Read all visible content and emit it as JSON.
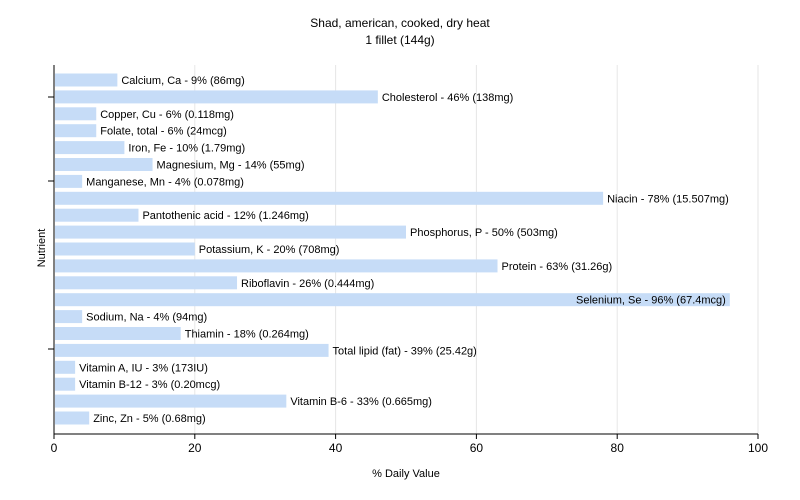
{
  "chart_data": {
    "type": "bar",
    "orientation": "horizontal",
    "title": "Shad, american, cooked, dry heat",
    "subtitle": "1 fillet (144g)",
    "xlabel": "% Daily Value",
    "ylabel": "Nutrient",
    "xlim": [
      0,
      100
    ],
    "xticks": [
      0,
      20,
      40,
      60,
      80,
      100
    ],
    "grid": true,
    "legend": "none",
    "bar_color": "#c6dcf7",
    "categories": [
      "Calcium, Ca",
      "Cholesterol",
      "Copper, Cu",
      "Folate, total",
      "Iron, Fe",
      "Magnesium, Mg",
      "Manganese, Mn",
      "Niacin",
      "Pantothenic acid",
      "Phosphorus, P",
      "Potassium, K",
      "Protein",
      "Riboflavin",
      "Selenium, Se",
      "Sodium, Na",
      "Thiamin",
      "Total lipid (fat)",
      "Vitamin A, IU",
      "Vitamin B-12",
      "Vitamin B-6",
      "Zinc, Zn"
    ],
    "values": [
      9,
      46,
      6,
      6,
      10,
      14,
      4,
      78,
      12,
      50,
      20,
      63,
      26,
      96,
      4,
      18,
      39,
      3,
      3,
      33,
      5
    ],
    "bar_labels": [
      "Calcium, Ca - 9% (86mg)",
      "Cholesterol - 46% (138mg)",
      "Copper, Cu - 6% (0.118mg)",
      "Folate, total - 6% (24mcg)",
      "Iron, Fe - 10% (1.79mg)",
      "Magnesium, Mg - 14% (55mg)",
      "Manganese, Mn - 4% (0.078mg)",
      "Niacin - 78% (15.507mg)",
      "Pantothenic acid - 12% (1.246mg)",
      "Phosphorus, P - 50% (503mg)",
      "Potassium, K - 20% (708mg)",
      "Protein - 63% (31.26g)",
      "Riboflavin - 26% (0.444mg)",
      "Selenium, Se - 96% (67.4mcg)",
      "Sodium, Na - 4% (94mg)",
      "Thiamin - 18% (0.264mg)",
      "Total lipid (fat) - 39% (25.42g)",
      "Vitamin A, IU - 3% (173IU)",
      "Vitamin B-12 - 3% (0.20mcg)",
      "Vitamin B-6 - 33% (0.665mg)",
      "Zinc, Zn - 5% (0.68mg)"
    ]
  }
}
